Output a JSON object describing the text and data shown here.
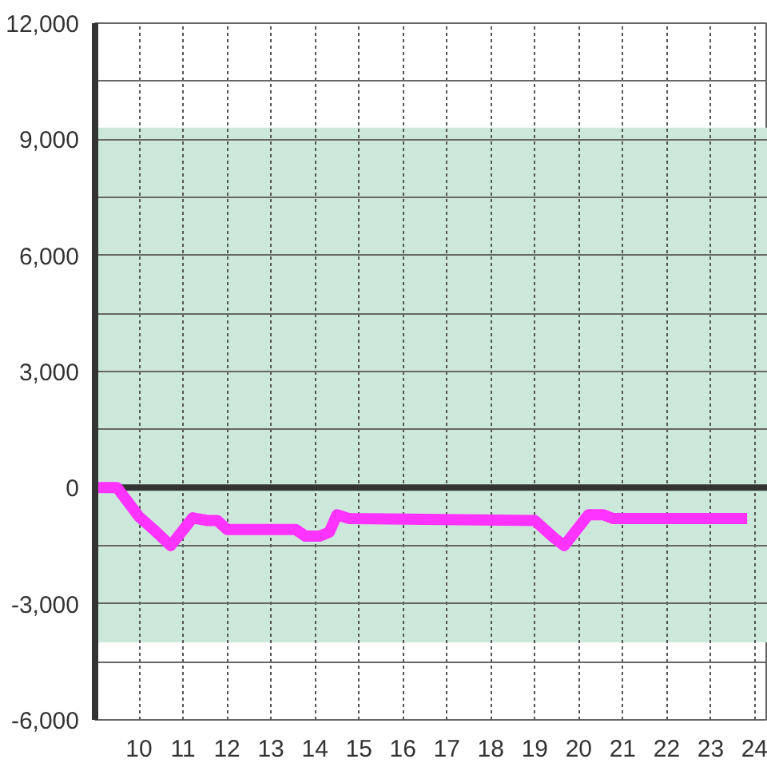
{
  "chart_data": {
    "type": "line",
    "x": [
      9.0,
      9.5,
      10.0,
      10.33,
      10.72,
      11.22,
      11.56,
      11.78,
      12.0,
      13.56,
      13.78,
      14.11,
      14.33,
      14.5,
      14.78,
      19.0,
      19.44,
      19.67,
      20.22,
      20.56,
      20.78,
      23.83
    ],
    "series": [
      {
        "color": "#ff33ff",
        "values": [
          0,
          0,
          -750,
          -1080,
          -1500,
          -780,
          -850,
          -850,
          -1080,
          -1080,
          -1250,
          -1250,
          -1150,
          -700,
          -800,
          -850,
          -1300,
          -1500,
          -700,
          -700,
          -800,
          -800
        ]
      }
    ],
    "xlim": [
      9.0,
      24.3
    ],
    "xticks": [
      10,
      11,
      12,
      13,
      14,
      15,
      16,
      17,
      18,
      19,
      20,
      21,
      22,
      23,
      24
    ],
    "ylim": [
      -6000,
      12000
    ],
    "yticks": [
      {
        "value": -6000,
        "label": "-6,000"
      },
      {
        "value": -4500,
        "label": null
      },
      {
        "value": -3000,
        "label": "-3,000"
      },
      {
        "value": -1500,
        "label": null
      },
      0,
      {
        "value": 1500,
        "label": null
      },
      {
        "value": 3000,
        "label": "3,000"
      },
      {
        "value": 4500,
        "label": null
      },
      {
        "value": 6000,
        "label": "6,000"
      },
      {
        "value": 7500,
        "label": null
      },
      {
        "value": 9000,
        "label": "9,000"
      },
      {
        "value": 10500,
        "label": null
      },
      {
        "value": 12000,
        "label": "12,000"
      }
    ],
    "grid": true,
    "line_style": "solid",
    "bands": [
      {
        "axis": "y",
        "from": -4000,
        "to": 9300,
        "color": "#cce8da"
      }
    ],
    "ref_lines": [
      {
        "axis": "y",
        "value": 0,
        "color": "#333333"
      }
    ]
  }
}
